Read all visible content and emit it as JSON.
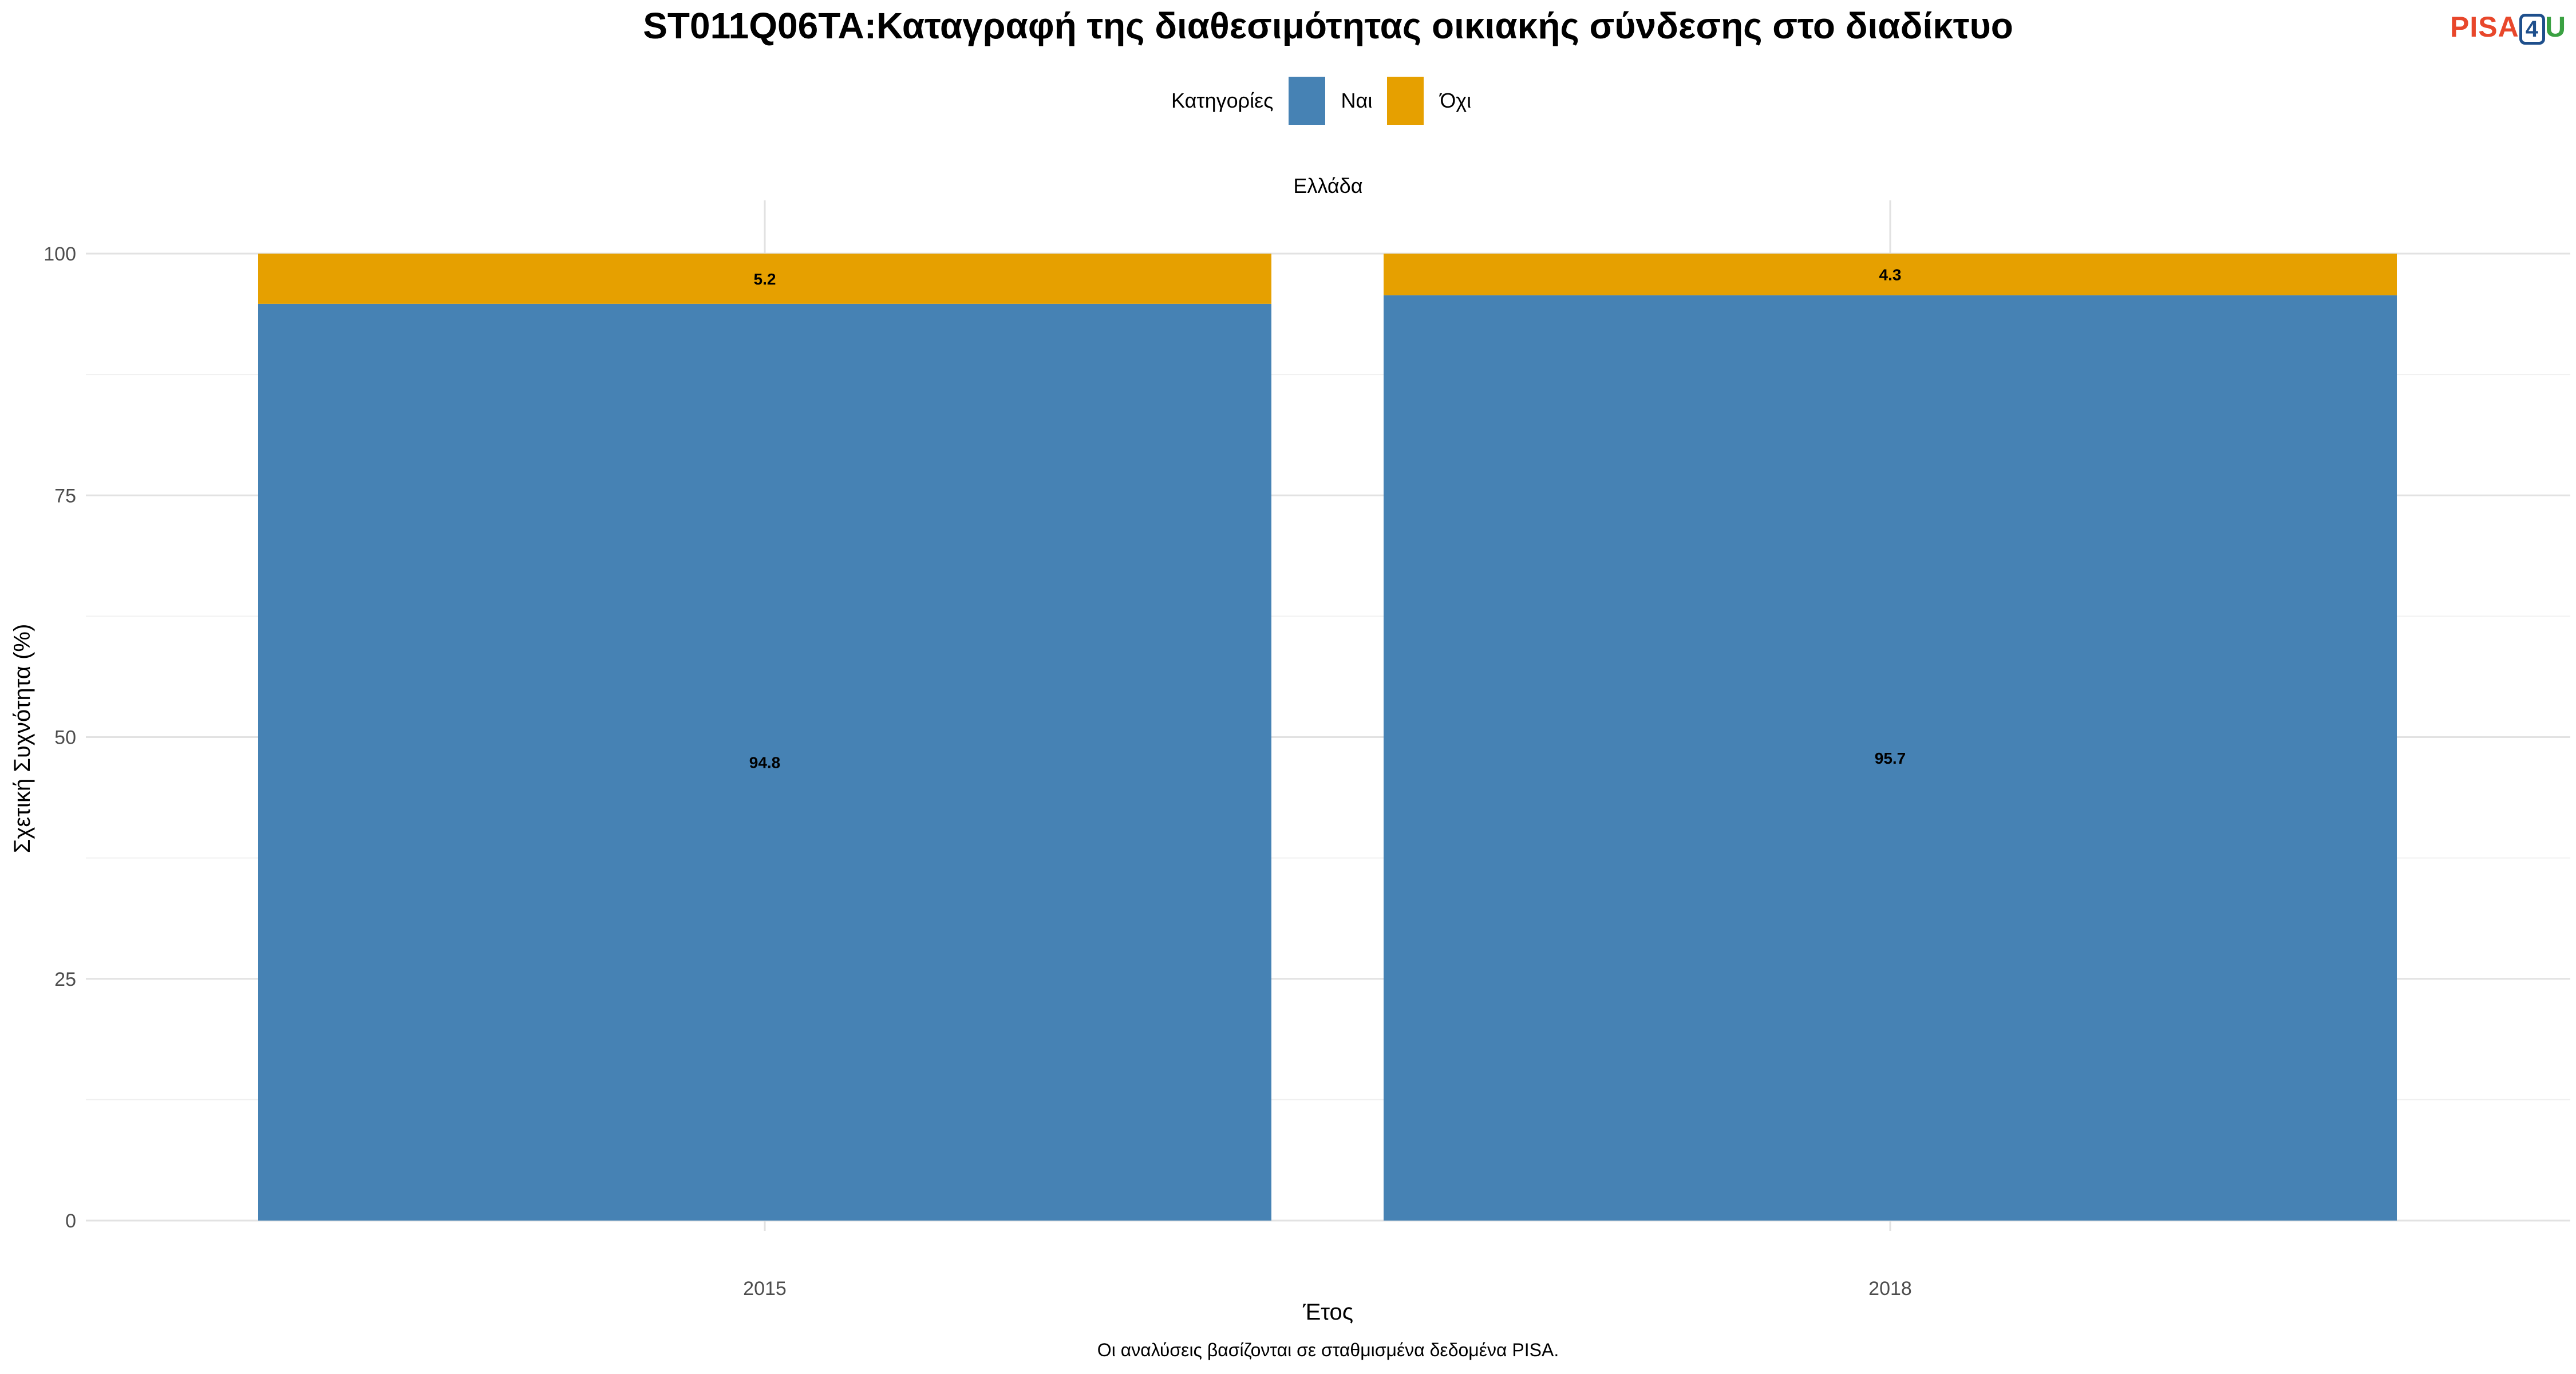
{
  "title": "ST011Q06TA:Καταγραφή της διαθεσιμότητας οικιακής σύνδεσης στο διαδίκτυο",
  "logo": {
    "part1": "PISA",
    "part2": "4",
    "part3": "U"
  },
  "legend": {
    "title": "Κατηγορίες",
    "items": [
      {
        "label": "Ναι",
        "color": "#4682b4"
      },
      {
        "label": "Όχι",
        "color": "#e6a000"
      }
    ]
  },
  "facet_label": "Ελλάδα",
  "caption": "Οι αναλύσεις βασίζονται σε σταθμισμένα δεδομένα PISA.",
  "chart_data": {
    "type": "bar",
    "stacked": true,
    "title": "ST011Q06TA:Καταγραφή της διαθεσιμότητας οικιακής σύνδεσης στο διαδίκτυο",
    "xlabel": "Έτος",
    "ylabel": "Σχετική Συχνότητα (%)",
    "categories": [
      "2015",
      "2018"
    ],
    "series": [
      {
        "name": "Ναι",
        "values": [
          94.8,
          95.7
        ],
        "color": "#4682b4"
      },
      {
        "name": "Όχι",
        "values": [
          5.2,
          4.3
        ],
        "color": "#e6a000"
      }
    ],
    "ylim": [
      0,
      100
    ],
    "yticks": [
      0,
      25,
      50,
      75,
      100
    ],
    "grid": true,
    "legend_position": "top"
  }
}
